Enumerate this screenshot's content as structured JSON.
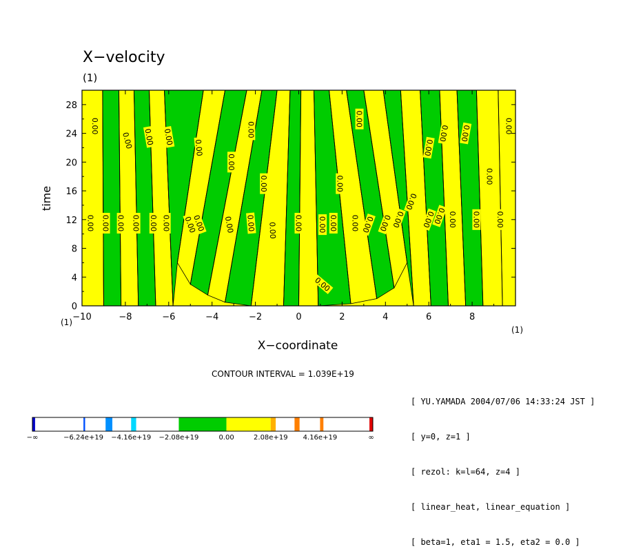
{
  "chart_data": {
    "type": "contour",
    "title": "X−velocity",
    "units_label": "(1)",
    "xlabel": "X−coordinate",
    "ylabel": "time",
    "x_unit_label": "(1)",
    "y_unit_label": "(1)",
    "xlim": [
      -10,
      10
    ],
    "ylim": [
      0,
      30
    ],
    "x_ticks": [
      -10,
      -8,
      -6,
      -4,
      -2,
      0,
      2,
      4,
      6,
      8
    ],
    "x_tick_labels": [
      "−10",
      "−8",
      "−6",
      "−4",
      "−2",
      "0",
      "2",
      "4",
      "6",
      "8"
    ],
    "y_ticks": [
      0,
      4,
      8,
      12,
      16,
      20,
      24,
      28
    ],
    "y_tick_labels": [
      "0",
      "4",
      "8",
      "12",
      "16",
      "20",
      "24",
      "28"
    ],
    "contour_label": "0.00",
    "contour_interval": "CONTOUR INTERVAL = 1.039E+19",
    "fill_colors": {
      "negative_band": "#00cc00",
      "positive_band": "#ffff00",
      "line": "#000000"
    },
    "bands": [
      {
        "x0": -10.0,
        "t0": 0,
        "x1": -10.0,
        "t1": 30
      },
      {
        "x0": -9.0,
        "t0": 0,
        "x1": -9.05,
        "t1": 30
      },
      {
        "x0": -8.2,
        "t0": 0,
        "x1": -8.3,
        "t1": 30
      },
      {
        "x0": -7.4,
        "t0": 0,
        "x1": -7.6,
        "t1": 30
      },
      {
        "x0": -6.6,
        "t0": 0,
        "x1": -6.9,
        "t1": 30
      },
      {
        "x0": -5.8,
        "t0": 0,
        "x1": -6.2,
        "t1": 30
      },
      {
        "x0": -5.6,
        "t0": 6,
        "x1": -4.4,
        "t1": 30
      },
      {
        "x0": -5.0,
        "t0": 3,
        "x1": -3.4,
        "t1": 30
      },
      {
        "x0": -4.2,
        "t0": 1.5,
        "x1": -2.4,
        "t1": 30
      },
      {
        "x0": -3.4,
        "t0": 0.5,
        "x1": -1.7,
        "t1": 30
      },
      {
        "x0": -2.2,
        "t0": 0,
        "x1": -1.0,
        "t1": 30
      },
      {
        "x0": -0.7,
        "t0": 0,
        "x1": -0.4,
        "t1": 30
      },
      {
        "x0": 0.0,
        "t0": 0,
        "x1": 0.1,
        "t1": 30
      },
      {
        "x0": 0.9,
        "t0": 0,
        "x1": 0.7,
        "t1": 30
      },
      {
        "x0": 2.4,
        "t0": 0.3,
        "x1": 1.4,
        "t1": 30
      },
      {
        "x0": 3.6,
        "t0": 1,
        "x1": 2.2,
        "t1": 30
      },
      {
        "x0": 4.4,
        "t0": 2.5,
        "x1": 3.0,
        "t1": 30
      },
      {
        "x0": 5.0,
        "t0": 6,
        "x1": 3.9,
        "t1": 30
      },
      {
        "x0": 5.3,
        "t0": 0,
        "x1": 4.7,
        "t1": 30
      },
      {
        "x0": 6.1,
        "t0": 0,
        "x1": 5.6,
        "t1": 30
      },
      {
        "x0": 6.9,
        "t0": 0,
        "x1": 6.5,
        "t1": 30
      },
      {
        "x0": 7.7,
        "t0": 0,
        "x1": 7.3,
        "t1": 30
      },
      {
        "x0": 8.5,
        "t0": 0,
        "x1": 8.2,
        "t1": 30
      },
      {
        "x0": 9.4,
        "t0": 0,
        "x1": 9.2,
        "t1": 30
      }
    ],
    "zero_labels": [
      {
        "x": -9.6,
        "t": 11.5,
        "rot": 90
      },
      {
        "x": -8.9,
        "t": 11.5,
        "rot": 90
      },
      {
        "x": -8.2,
        "t": 11.5,
        "rot": 90
      },
      {
        "x": -7.5,
        "t": 11.5,
        "rot": 90
      },
      {
        "x": -6.7,
        "t": 11.5,
        "rot": 90
      },
      {
        "x": -6.1,
        "t": 11.5,
        "rot": 90
      },
      {
        "x": -5.0,
        "t": 11.3,
        "rot": 70
      },
      {
        "x": -4.6,
        "t": 11.5,
        "rot": 70
      },
      {
        "x": -3.2,
        "t": 11.3,
        "rot": 80
      },
      {
        "x": -2.2,
        "t": 11.5,
        "rot": 85
      },
      {
        "x": -1.2,
        "t": 10.5,
        "rot": 88
      },
      {
        "x": 0.0,
        "t": 11.5,
        "rot": 90
      },
      {
        "x": 1.1,
        "t": 11.3,
        "rot": 90
      },
      {
        "x": 1.6,
        "t": 11.5,
        "rot": 90
      },
      {
        "x": 2.6,
        "t": 11.5,
        "rot": 90
      },
      {
        "x": 3.2,
        "t": 11.3,
        "rot": 110
      },
      {
        "x": 4.0,
        "t": 11.5,
        "rot": 110
      },
      {
        "x": 4.6,
        "t": 12.0,
        "rot": 110
      },
      {
        "x": 5.2,
        "t": 14.5,
        "rot": 110
      },
      {
        "x": 6.0,
        "t": 12.0,
        "rot": 110
      },
      {
        "x": 6.5,
        "t": 12.5,
        "rot": 110
      },
      {
        "x": 7.1,
        "t": 12.0,
        "rot": 90
      },
      {
        "x": 8.2,
        "t": 12.0,
        "rot": 90
      },
      {
        "x": 9.3,
        "t": 12.0,
        "rot": 90
      },
      {
        "x": -9.4,
        "t": 25.0,
        "rot": 90
      },
      {
        "x": -7.9,
        "t": 23.0,
        "rot": 75
      },
      {
        "x": -6.9,
        "t": 23.5,
        "rot": 80
      },
      {
        "x": -6.0,
        "t": 23.5,
        "rot": 80
      },
      {
        "x": -4.6,
        "t": 22.0,
        "rot": 85
      },
      {
        "x": -3.1,
        "t": 20.0,
        "rot": 90
      },
      {
        "x": -2.2,
        "t": 24.5,
        "rot": 90
      },
      {
        "x": -1.6,
        "t": 17.0,
        "rot": 90
      },
      {
        "x": 1.9,
        "t": 17.0,
        "rot": 90
      },
      {
        "x": 2.8,
        "t": 26.0,
        "rot": 90
      },
      {
        "x": 6.0,
        "t": 22.0,
        "rot": 100
      },
      {
        "x": 6.7,
        "t": 24.0,
        "rot": 100
      },
      {
        "x": 7.7,
        "t": 24.0,
        "rot": 100
      },
      {
        "x": 8.8,
        "t": 18.0,
        "rot": 90
      },
      {
        "x": 9.7,
        "t": 25.0,
        "rot": 90
      },
      {
        "x": 1.1,
        "t": 3.0,
        "rot": 40
      }
    ],
    "colorbar": {
      "tick_labels": [
        "−∞",
        "−6.24e+19",
        "−4.16e+19",
        "−2.08e+19",
        "0.00",
        "2.08e+19",
        "4.16e+19",
        "∞"
      ],
      "segments": [
        {
          "from": 0.0,
          "to": 0.008,
          "color": "#0000c8"
        },
        {
          "from": 0.008,
          "to": 0.15,
          "color": "#ffffff"
        },
        {
          "from": 0.15,
          "to": 0.155,
          "color": "#0050ff"
        },
        {
          "from": 0.155,
          "to": 0.215,
          "color": "#ffffff"
        },
        {
          "from": 0.215,
          "to": 0.235,
          "color": "#0090ff"
        },
        {
          "from": 0.235,
          "to": 0.29,
          "color": "#ffffff"
        },
        {
          "from": 0.29,
          "to": 0.305,
          "color": "#00d8ff"
        },
        {
          "from": 0.305,
          "to": 0.43,
          "color": "#ffffff"
        },
        {
          "from": 0.43,
          "to": 0.57,
          "color": "#00cc00"
        },
        {
          "from": 0.57,
          "to": 0.7,
          "color": "#ffff00"
        },
        {
          "from": 0.7,
          "to": 0.715,
          "color": "#ffb000"
        },
        {
          "from": 0.715,
          "to": 0.77,
          "color": "#ffffff"
        },
        {
          "from": 0.77,
          "to": 0.785,
          "color": "#ff8000"
        },
        {
          "from": 0.785,
          "to": 0.845,
          "color": "#ffffff"
        },
        {
          "from": 0.845,
          "to": 0.855,
          "color": "#ff8000"
        },
        {
          "from": 0.855,
          "to": 0.99,
          "color": "#ffffff"
        },
        {
          "from": 0.99,
          "to": 1.0,
          "color": "#e00000"
        }
      ]
    }
  },
  "info_lines": [
    "[ YU.YAMADA 2004/07/06 14:33:24 JST ]",
    "[ y=0, z=1 ]",
    "[ rezol: k=l=64, z=4 ]",
    "[ linear_heat, linear_equation ]",
    "[ beta=1, eta1 = 1.5, eta2 = 0.0 ]"
  ]
}
